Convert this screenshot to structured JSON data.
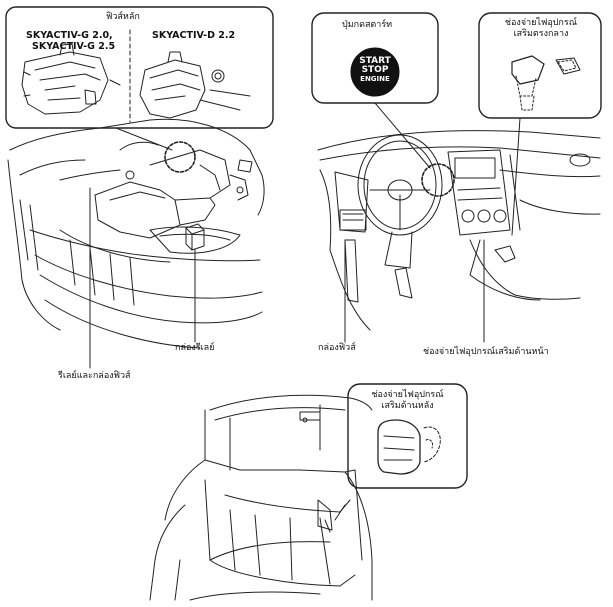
{
  "fuse_panel": {
    "title": "ฟิวส์หลัก",
    "engine_g_line1": "SKYACTIV-G 2.0,",
    "engine_g_line2": "SKYACTIV-G 2.5",
    "engine_d": "SKYACTIV-D 2.2"
  },
  "labels": {
    "relay_box": "กล่องรีเลย์",
    "relay_fuse_box": "รีเลย์และกล่องฟิวส์",
    "start_button_title": "ปุ่มกดสตาร์ท",
    "start_text": "START",
    "stop_text": "STOP",
    "engine_text": "ENGINE",
    "center_outlet_line1": "ช่องจ่ายไฟอุปกรณ์",
    "center_outlet_line2": "เสริมตรงกลาง",
    "fuse_box": "กล่องฟิวส์",
    "front_outlet": "ช่องจ่ายไฟอุปกรณ์เสริมด้านหน้า",
    "rear_outlet_line1": "ช่องจ่ายไฟอุปกรณ์",
    "rear_outlet_line2": "เสริมด้านหลัง"
  }
}
